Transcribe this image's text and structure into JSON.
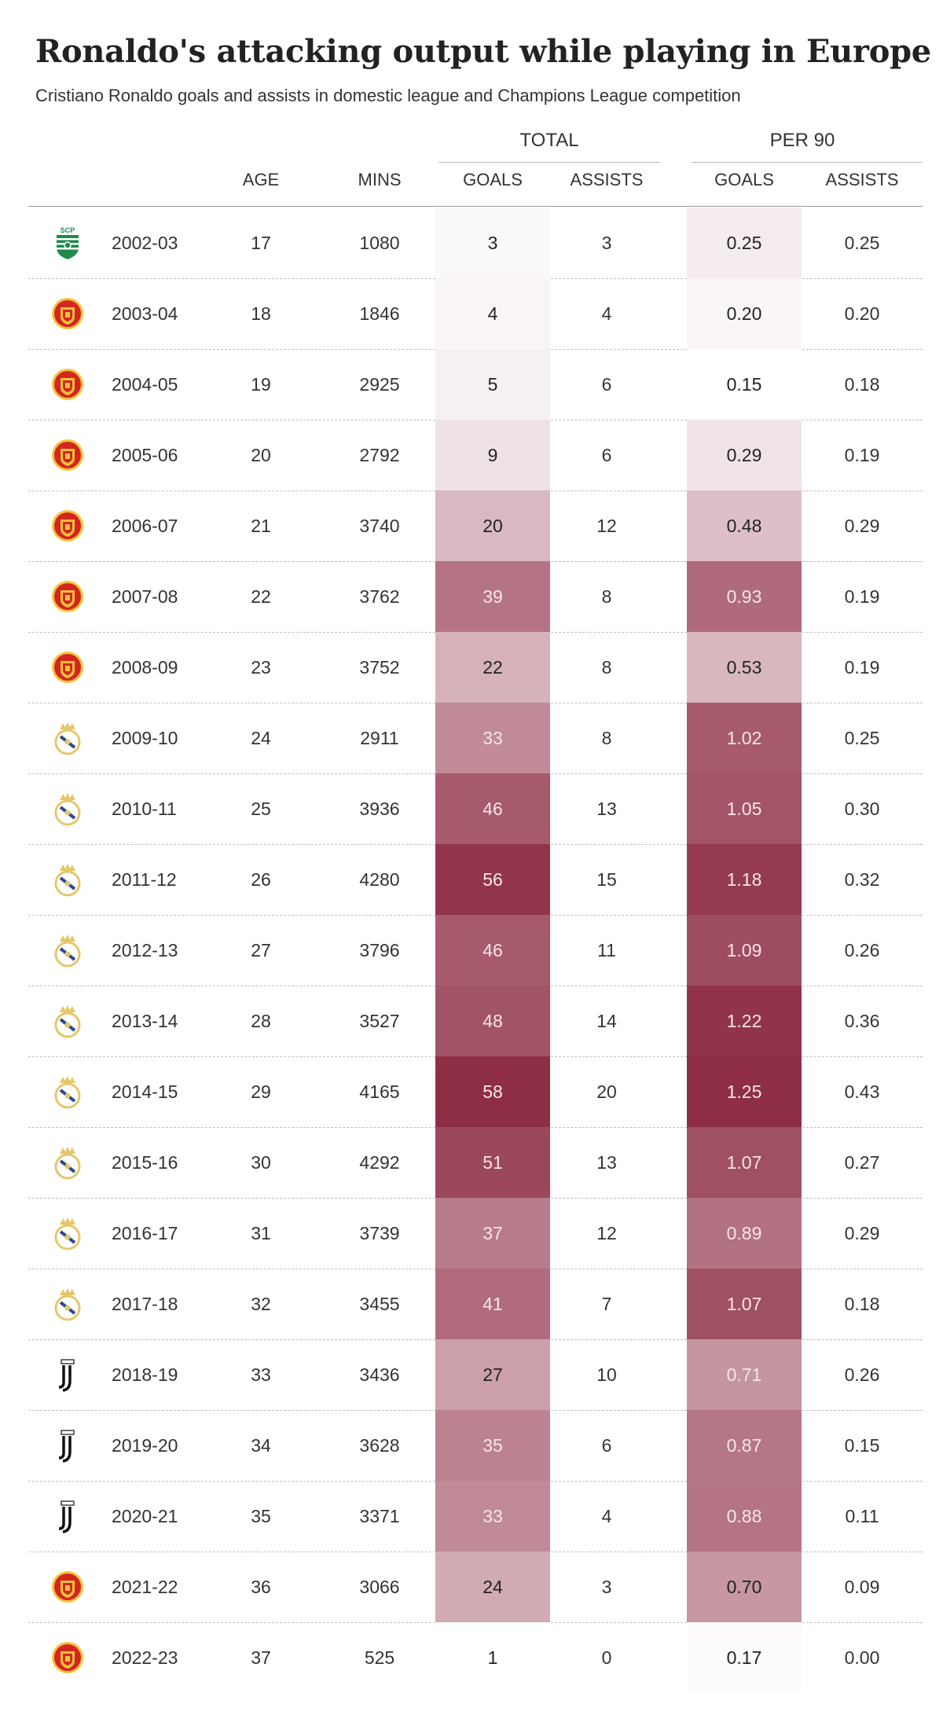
{
  "title": "Ronaldo's attacking output while playing in Europe",
  "subtitle": "Cristiano Ronaldo goals and assists in domestic league and Champions League competition",
  "headers": {
    "group_total": "TOTAL",
    "group_per90": "PER 90",
    "age": "AGE",
    "mins": "MINS",
    "goals": "GOALS",
    "assists": "ASSISTS",
    "goals_per90": "GOALS",
    "assists_per90": "ASSISTS"
  },
  "colors": {
    "heat_low": "#ffffff",
    "heat_high": "#8e2e45",
    "crest_sporting": "#1f8a4c",
    "crest_united": "#d4251f",
    "crest_united_gold": "#f3c33b",
    "crest_real": "#e5c76b",
    "crest_real_blue": "#2b4b8e",
    "crest_juventus": "#111111"
  },
  "clubs_icons": {
    "sporting": "sporting-cp-crest-icon",
    "united": "manchester-united-crest-icon",
    "real": "real-madrid-crest-icon",
    "juventus": "juventus-crest-icon"
  },
  "crest_text": {
    "sporting": "SCP"
  },
  "chart_data": {
    "type": "table",
    "title": "Ronaldo's attacking output while playing in Europe",
    "subtitle": "Cristiano Ronaldo goals and assists in domestic league and Champions League competition",
    "columns": [
      "",
      "",
      "AGE",
      "MINS",
      "GOALS",
      "ASSISTS",
      "GOALS",
      "ASSISTS"
    ],
    "column_groups": [
      {
        "label": "TOTAL",
        "columns": [
          "GOALS",
          "ASSISTS"
        ]
      },
      {
        "label": "PER 90",
        "columns": [
          "GOALS",
          "ASSISTS"
        ]
      }
    ],
    "heatmap_columns": [
      "goals",
      "goals_per90"
    ],
    "rows": [
      {
        "club": "sporting",
        "season": "2002-03",
        "age": "17",
        "mins": "1080",
        "goals": "3",
        "assists": "3",
        "goals_per90": "0.25",
        "assists_per90": "0.25"
      },
      {
        "club": "united",
        "season": "2003-04",
        "age": "18",
        "mins": "1846",
        "goals": "4",
        "assists": "4",
        "goals_per90": "0.20",
        "assists_per90": "0.20"
      },
      {
        "club": "united",
        "season": "2004-05",
        "age": "19",
        "mins": "2925",
        "goals": "5",
        "assists": "6",
        "goals_per90": "0.15",
        "assists_per90": "0.18"
      },
      {
        "club": "united",
        "season": "2005-06",
        "age": "20",
        "mins": "2792",
        "goals": "9",
        "assists": "6",
        "goals_per90": "0.29",
        "assists_per90": "0.19"
      },
      {
        "club": "united",
        "season": "2006-07",
        "age": "21",
        "mins": "3740",
        "goals": "20",
        "assists": "12",
        "goals_per90": "0.48",
        "assists_per90": "0.29"
      },
      {
        "club": "united",
        "season": "2007-08",
        "age": "22",
        "mins": "3762",
        "goals": "39",
        "assists": "8",
        "goals_per90": "0.93",
        "assists_per90": "0.19"
      },
      {
        "club": "united",
        "season": "2008-09",
        "age": "23",
        "mins": "3752",
        "goals": "22",
        "assists": "8",
        "goals_per90": "0.53",
        "assists_per90": "0.19"
      },
      {
        "club": "real",
        "season": "2009-10",
        "age": "24",
        "mins": "2911",
        "goals": "33",
        "assists": "8",
        "goals_per90": "1.02",
        "assists_per90": "0.25"
      },
      {
        "club": "real",
        "season": "2010-11",
        "age": "25",
        "mins": "3936",
        "goals": "46",
        "assists": "13",
        "goals_per90": "1.05",
        "assists_per90": "0.30"
      },
      {
        "club": "real",
        "season": "2011-12",
        "age": "26",
        "mins": "4280",
        "goals": "56",
        "assists": "15",
        "goals_per90": "1.18",
        "assists_per90": "0.32"
      },
      {
        "club": "real",
        "season": "2012-13",
        "age": "27",
        "mins": "3796",
        "goals": "46",
        "assists": "11",
        "goals_per90": "1.09",
        "assists_per90": "0.26"
      },
      {
        "club": "real",
        "season": "2013-14",
        "age": "28",
        "mins": "3527",
        "goals": "48",
        "assists": "14",
        "goals_per90": "1.22",
        "assists_per90": "0.36"
      },
      {
        "club": "real",
        "season": "2014-15",
        "age": "29",
        "mins": "4165",
        "goals": "58",
        "assists": "20",
        "goals_per90": "1.25",
        "assists_per90": "0.43"
      },
      {
        "club": "real",
        "season": "2015-16",
        "age": "30",
        "mins": "4292",
        "goals": "51",
        "assists": "13",
        "goals_per90": "1.07",
        "assists_per90": "0.27"
      },
      {
        "club": "real",
        "season": "2016-17",
        "age": "31",
        "mins": "3739",
        "goals": "37",
        "assists": "12",
        "goals_per90": "0.89",
        "assists_per90": "0.29"
      },
      {
        "club": "real",
        "season": "2017-18",
        "age": "32",
        "mins": "3455",
        "goals": "41",
        "assists": "7",
        "goals_per90": "1.07",
        "assists_per90": "0.18"
      },
      {
        "club": "juventus",
        "season": "2018-19",
        "age": "33",
        "mins": "3436",
        "goals": "27",
        "assists": "10",
        "goals_per90": "0.71",
        "assists_per90": "0.26"
      },
      {
        "club": "juventus",
        "season": "2019-20",
        "age": "34",
        "mins": "3628",
        "goals": "35",
        "assists": "6",
        "goals_per90": "0.87",
        "assists_per90": "0.15"
      },
      {
        "club": "juventus",
        "season": "2020-21",
        "age": "35",
        "mins": "3371",
        "goals": "33",
        "assists": "4",
        "goals_per90": "0.88",
        "assists_per90": "0.11"
      },
      {
        "club": "united",
        "season": "2021-22",
        "age": "36",
        "mins": "3066",
        "goals": "24",
        "assists": "3",
        "goals_per90": "0.70",
        "assists_per90": "0.09"
      },
      {
        "club": "united",
        "season": "2022-23",
        "age": "37",
        "mins": "525",
        "goals": "1",
        "assists": "0",
        "goals_per90": "0.17",
        "assists_per90": "0.00"
      }
    ]
  }
}
